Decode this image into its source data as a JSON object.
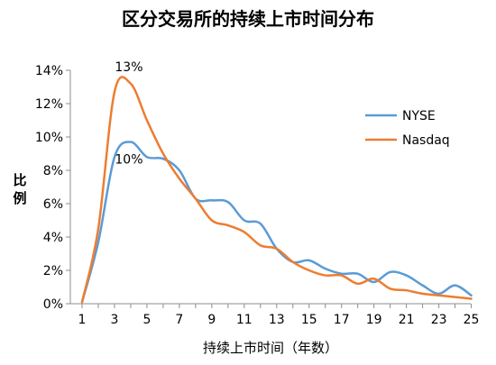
{
  "chart_data": {
    "type": "line",
    "title": "区分交易所的持续上市时间分布",
    "xlabel": "持续上市时间（年数）",
    "ylabel": "比例",
    "x": [
      1,
      2,
      3,
      4,
      5,
      6,
      7,
      8,
      9,
      10,
      11,
      12,
      13,
      14,
      15,
      16,
      17,
      18,
      19,
      20,
      21,
      22,
      23,
      24,
      25
    ],
    "x_ticks": [
      "1",
      "3",
      "5",
      "7",
      "9",
      "11",
      "13",
      "15",
      "17",
      "19",
      "21",
      "23",
      "25"
    ],
    "y_ticks": [
      "0%",
      "2%",
      "4%",
      "6%",
      "8%",
      "10%",
      "12%",
      "14%"
    ],
    "ylim": [
      0,
      14
    ],
    "grid": false,
    "legend_position": "right",
    "series": [
      {
        "name": "NYSE",
        "color": "#5b9bd5",
        "values": [
          0.1,
          3.7,
          8.8,
          9.7,
          8.8,
          8.7,
          8.0,
          6.3,
          6.2,
          6.1,
          5.0,
          4.8,
          3.3,
          2.5,
          2.6,
          2.1,
          1.8,
          1.8,
          1.3,
          1.9,
          1.7,
          1.1,
          0.6,
          1.1,
          0.5
        ]
      },
      {
        "name": "Nasdaq",
        "color": "#ed7d31",
        "values": [
          0.1,
          4.5,
          12.7,
          13.2,
          11.0,
          9.0,
          7.5,
          6.3,
          5.0,
          4.7,
          4.3,
          3.5,
          3.3,
          2.5,
          2.0,
          1.7,
          1.7,
          1.2,
          1.5,
          0.9,
          0.8,
          0.6,
          0.5,
          0.4,
          0.3
        ]
      }
    ],
    "annotations": [
      {
        "text": "13%",
        "x": 4,
        "y": 13.2
      },
      {
        "text": "10%",
        "x": 4,
        "y": 9.7
      }
    ]
  }
}
